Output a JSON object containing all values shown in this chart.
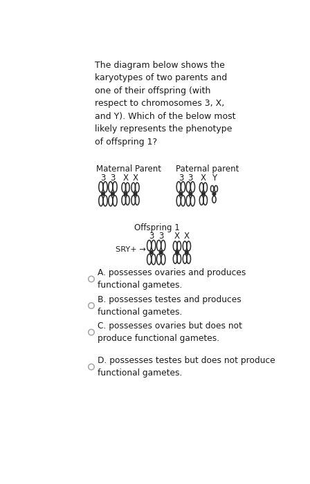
{
  "title_text": "The diagram below shows the\nkaryotypes of two parents and\none of their offspring (with\nrespect to chromosomes 3, X,\nand Y). Which of the below most\nlikely represents the phenotype\nof offspring 1?",
  "maternal_label": "Maternal Parent",
  "paternal_label": "Paternal parent",
  "maternal_chroms": [
    "3",
    "3",
    "X",
    "X"
  ],
  "paternal_chroms": [
    "3",
    "3",
    "X",
    "Y"
  ],
  "offspring_label": "Offspring 1",
  "offspring_chroms": [
    "3",
    "3",
    "X",
    "X"
  ],
  "sry_label": "SRY+ →",
  "options": [
    "A. possesses ovaries and produces\nfunctional gametes.",
    "B. possesses testes and produces\nfunctional gametes.",
    "C. possesses ovaries but does not\nproduce functional gametes.",
    "D. possesses testes but does not produce\nfunctional gametes."
  ],
  "bg_color": "#ffffff",
  "text_color": "#1a1a1a",
  "chrom_color": "#2a2a2a",
  "radio_color": "#aaaaaa",
  "title_fontsize": 9.0,
  "label_fontsize": 8.5,
  "chrom_label_fontsize": 8.5,
  "option_fontsize": 8.8
}
